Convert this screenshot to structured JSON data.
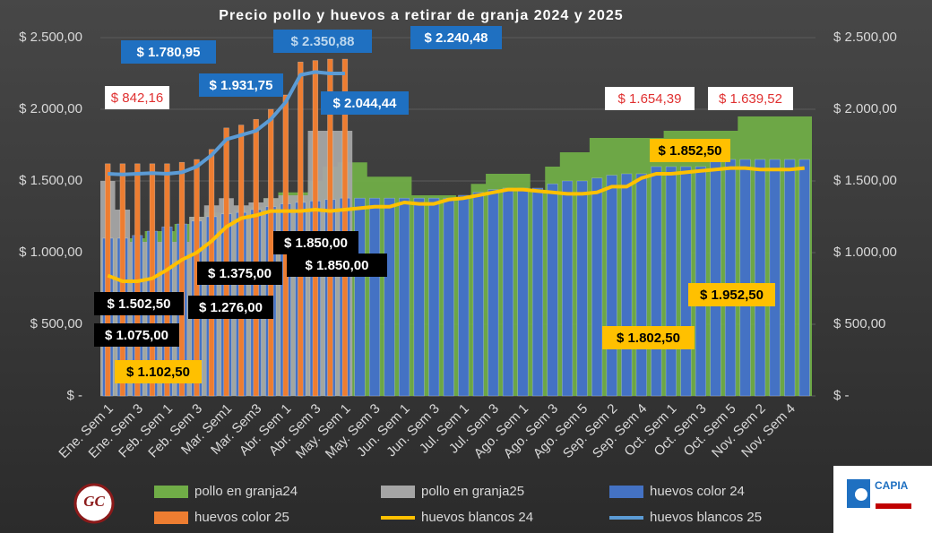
{
  "chart_data": {
    "type": "combo",
    "title": "Precio pollo y huevos a retirar de granja  2024 y 2025",
    "categories": [
      "Ene. Sem 1",
      null,
      "Ene. Sem 3",
      null,
      "Feb. Sem 1",
      null,
      "Feb. Sem 3",
      null,
      "Mar. Sem1",
      null,
      "Mar. Sem3",
      null,
      "Abr. Sem 1",
      null,
      "Abr. Sem 3",
      null,
      "May. Sem 1",
      null,
      "May. Sem 3",
      null,
      "Jun. Sem 1",
      null,
      "Jun. Sem 3",
      null,
      "Jul. Sem 1",
      null,
      "Jul. Sem 3",
      null,
      "Ago. Sem 1",
      null,
      "Ago. Sem 3",
      null,
      "Ago. Sem 5",
      null,
      "Sep. Sem 2",
      null,
      "Sep. Sem 4",
      null,
      "Oct. Sem 1",
      null,
      "Oct. Sem 3",
      null,
      "Oct. Sem 5",
      null,
      "Nov. Sem 2",
      null,
      "Nov. Sem 4",
      null
    ],
    "ylim": [
      0,
      2500
    ],
    "yticks": [
      {
        "value": 0,
        "label": "$ -"
      },
      {
        "value": 500,
        "label": "$ 500,00"
      },
      {
        "value": 1000,
        "label": "$ 1.000,00"
      },
      {
        "value": 1500,
        "label": "$ 1.500,00"
      },
      {
        "value": 2000,
        "label": "$ 2.000,00"
      },
      {
        "value": 2500,
        "label": "$ 2.500,00"
      }
    ],
    "y2lim": [
      0,
      2500
    ],
    "y2ticks": [
      {
        "value": 0,
        "label": "$ -"
      },
      {
        "value": 500,
        "label": "$ 500,00"
      },
      {
        "value": 1000,
        "label": "$ 1.000,00"
      },
      {
        "value": 1500,
        "label": "$ 1.500,00"
      },
      {
        "value": 2000,
        "label": "$ 2.000,00"
      },
      {
        "value": 2500,
        "label": "$ 2.500,00"
      }
    ],
    "grid": true,
    "legend": "bottom",
    "series": [
      {
        "name": "pollo en granja24",
        "kind": "area",
        "color": "#70ad47",
        "values": [
          1100,
          1100,
          1100,
          1150,
          1150,
          1200,
          1250,
          1280,
          1280,
          1300,
          1320,
          1380,
          1420,
          1420,
          1500,
          1600,
          1630,
          1630,
          1530,
          1530,
          1530,
          1400,
          1400,
          1400,
          1390,
          1480,
          1550,
          1550,
          1550,
          1430,
          1600,
          1700,
          1700,
          1800,
          1800,
          1800,
          1800,
          1800,
          1850,
          1850,
          1850,
          1850,
          1850,
          1950,
          1950,
          1950,
          1950,
          1950
        ]
      },
      {
        "name": "pollo en granja25",
        "kind": "area",
        "color": "#a5a5a5",
        "values": [
          1500,
          1300,
          1075,
          1075,
          1075,
          1075,
          1250,
          1330,
          1380,
          1330,
          1350,
          1380,
          1400,
          1400,
          1850,
          1850,
          1850,
          null,
          null,
          null,
          null,
          null,
          null,
          null,
          null,
          null,
          null,
          null,
          null,
          null,
          null,
          null,
          null,
          null,
          null,
          null,
          null,
          null,
          null,
          null,
          null,
          null,
          null,
          null,
          null,
          null,
          null,
          null
        ]
      },
      {
        "name": "huevos color 24",
        "kind": "bar",
        "color": "#4472c4",
        "values": [
          1100,
          1100,
          1120,
          1150,
          1180,
          1200,
          1220,
          1250,
          1270,
          1280,
          1300,
          1320,
          1340,
          1350,
          1360,
          1370,
          1380,
          1380,
          1380,
          1380,
          1380,
          1380,
          1380,
          1380,
          1400,
          1420,
          1440,
          1450,
          1450,
          1450,
          1480,
          1500,
          1500,
          1520,
          1540,
          1550,
          1550,
          1600,
          1600,
          1600,
          1600,
          1650,
          1650,
          1650,
          1650,
          1650,
          1650,
          1650
        ]
      },
      {
        "name": "huevos color 25",
        "kind": "bar",
        "color": "#ed7d31",
        "values": [
          1620,
          1620,
          1620,
          1620,
          1620,
          1630,
          1650,
          1720,
          1870,
          1890,
          1930,
          2000,
          2100,
          2330,
          2340,
          2350,
          2350,
          null,
          null,
          null,
          null,
          null,
          null,
          null,
          null,
          null,
          null,
          null,
          null,
          null,
          null,
          null,
          null,
          null,
          null,
          null,
          null,
          null,
          null,
          null,
          null,
          null,
          null,
          null,
          null,
          null,
          null,
          null
        ]
      },
      {
        "name": "huevos blancos 24",
        "kind": "line",
        "color": "#ffc000",
        "values": [
          840,
          800,
          800,
          820,
          880,
          950,
          1000,
          1080,
          1180,
          1240,
          1260,
          1290,
          1290,
          1290,
          1300,
          1290,
          1300,
          1310,
          1320,
          1320,
          1350,
          1340,
          1340,
          1370,
          1380,
          1400,
          1420,
          1440,
          1440,
          1430,
          1420,
          1410,
          1410,
          1420,
          1460,
          1460,
          1520,
          1550,
          1550,
          1560,
          1570,
          1580,
          1590,
          1590,
          1580,
          1580,
          1580,
          1590
        ]
      },
      {
        "name": "huevos blancos 25",
        "kind": "line",
        "color": "#5b9bd5",
        "values": [
          1550,
          1545,
          1550,
          1555,
          1550,
          1560,
          1600,
          1680,
          1790,
          1820,
          1850,
          1930,
          2050,
          2240,
          2260,
          2250,
          2250,
          null,
          null,
          null,
          null,
          null,
          null,
          null,
          null,
          null,
          null,
          null,
          null,
          null,
          null,
          null,
          null,
          null,
          null,
          null,
          null,
          null,
          null,
          null,
          null,
          null,
          null,
          null,
          null,
          null,
          null,
          null
        ]
      }
    ],
    "annotations": [
      "$ 842,16",
      "$ 1.780,95",
      "$ 1.931,75",
      "$ 2.350,88",
      "$ 2.240,48",
      "$ 2.044,44",
      "$ 1.654,39",
      "$ 1.639,52",
      "$ 1.852,50",
      "$ 1.850,00",
      "$ 1.850,00",
      "$ 1.375,00",
      "$ 1.276,00",
      "$ 1.502,50",
      "$ 1.075,00",
      "$ 1.102,50",
      "$ 1.952,50",
      "$ 1.802,50"
    ],
    "logos": [
      "GC",
      "CAPIA"
    ]
  }
}
